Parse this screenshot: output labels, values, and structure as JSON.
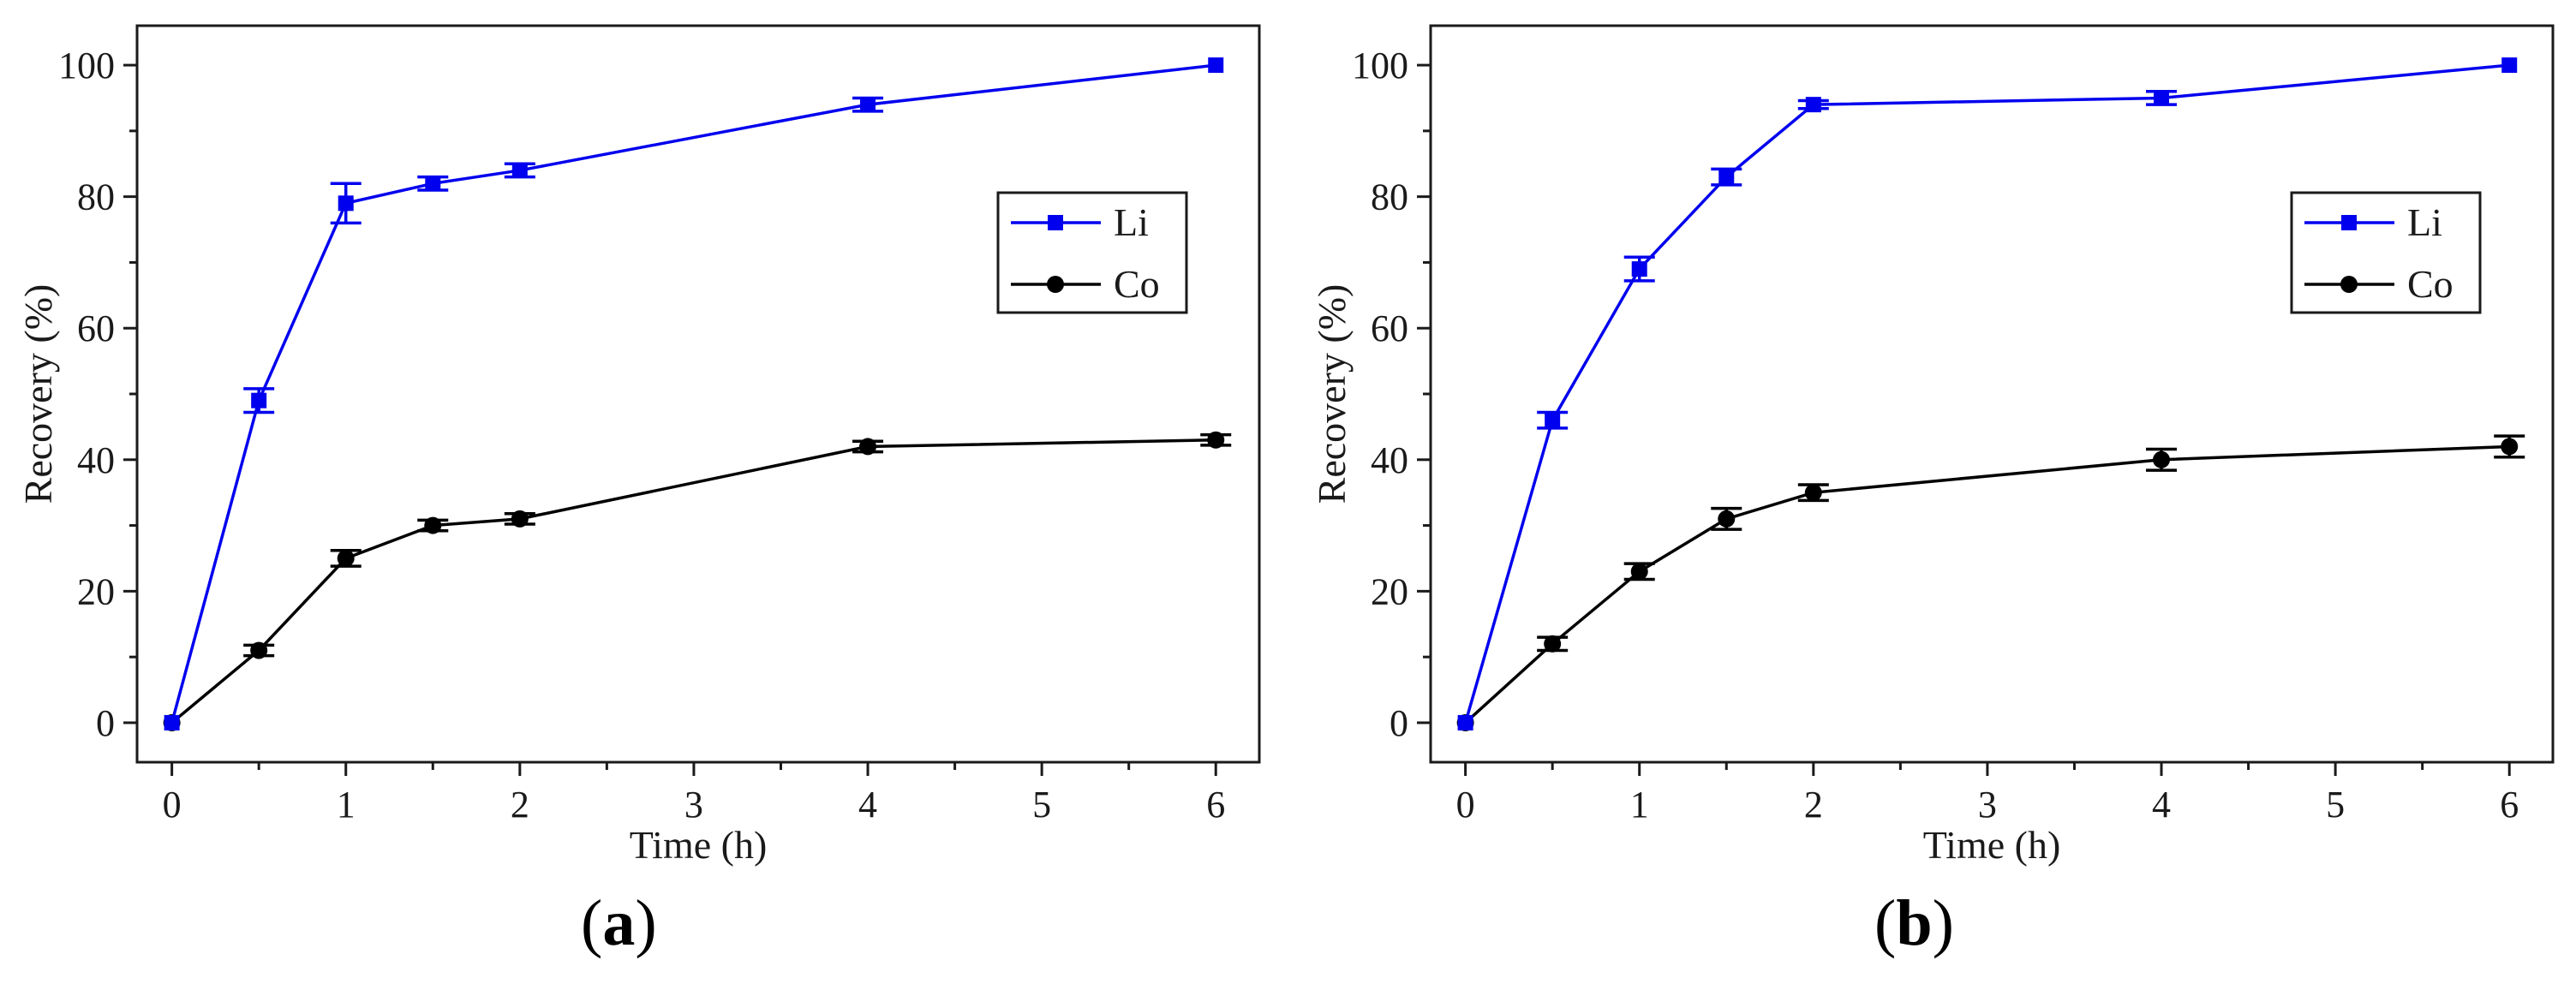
{
  "chart_data": [
    {
      "panel": "a",
      "type": "line",
      "xlabel": "Time (h)",
      "ylabel": "Recovery (%)",
      "xlim": [
        -0.2,
        6.25
      ],
      "ylim": [
        -6,
        106
      ],
      "xticks": [
        0,
        1,
        2,
        3,
        4,
        5,
        6
      ],
      "yticks": [
        0,
        20,
        40,
        60,
        80,
        100
      ],
      "legend_position": "upper-right",
      "series": [
        {
          "name": "Li",
          "color": "#0000ee",
          "marker": "square",
          "x": [
            0,
            0.5,
            1,
            1.5,
            2,
            4,
            6
          ],
          "y": [
            0,
            49,
            79,
            82,
            84,
            94,
            100
          ],
          "err": [
            0,
            1.8,
            3.0,
            1.0,
            1.0,
            1.0,
            0
          ]
        },
        {
          "name": "Co",
          "color": "#000000",
          "marker": "circle",
          "x": [
            0,
            0.5,
            1,
            1.5,
            2,
            4,
            6
          ],
          "y": [
            0,
            11,
            25,
            30,
            31,
            42,
            43
          ],
          "err": [
            0,
            0.8,
            1.2,
            0.8,
            0.8,
            0.8,
            0.8
          ]
        }
      ]
    },
    {
      "panel": "b",
      "type": "line",
      "xlabel": "Time (h)",
      "ylabel": "Recovery (%)",
      "xlim": [
        -0.2,
        6.25
      ],
      "ylim": [
        -6,
        106
      ],
      "xticks": [
        0,
        1,
        2,
        3,
        4,
        5,
        6
      ],
      "yticks": [
        0,
        20,
        40,
        60,
        80,
        100
      ],
      "legend_position": "upper-right",
      "series": [
        {
          "name": "Li",
          "color": "#0000ee",
          "marker": "square",
          "x": [
            0,
            0.5,
            1,
            1.5,
            2,
            4,
            6
          ],
          "y": [
            0,
            46,
            69,
            83,
            94,
            95,
            100
          ],
          "err": [
            0,
            1.2,
            1.8,
            1.2,
            0.6,
            1.0,
            0
          ]
        },
        {
          "name": "Co",
          "color": "#000000",
          "marker": "circle",
          "x": [
            0,
            0.5,
            1,
            1.5,
            2,
            4,
            6
          ],
          "y": [
            0,
            12,
            23,
            31,
            35,
            40,
            42
          ],
          "err": [
            0,
            1.0,
            1.2,
            1.6,
            1.2,
            1.6,
            1.6
          ]
        }
      ]
    }
  ]
}
